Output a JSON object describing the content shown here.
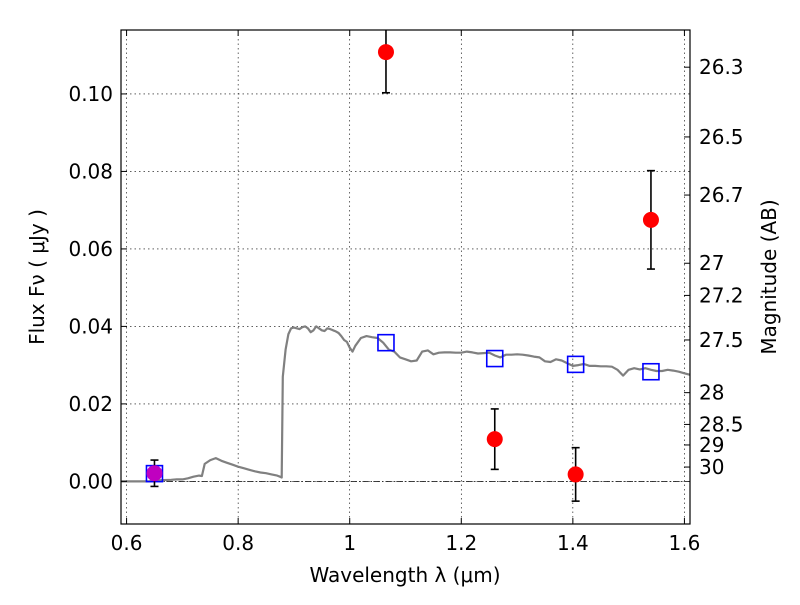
{
  "chart_data": {
    "type": "scatter",
    "title": "",
    "xlabel": "Wavelength  λ (μm)",
    "ylabel": "Flux  Fν  ( μJy )",
    "y2label": "Magnitude (AB)",
    "xlim": [
      0.59,
      1.61
    ],
    "ylim": [
      -0.011,
      0.1165
    ],
    "x_ticks": [
      0.6,
      0.8,
      1.0,
      1.2,
      1.4,
      1.6
    ],
    "x_tick_labels": [
      "0.6",
      "0.8",
      "1",
      "1.2",
      "1.4",
      "1.6"
    ],
    "y_ticks": [
      0.0,
      0.02,
      0.04,
      0.06,
      0.08,
      0.1
    ],
    "y_tick_labels": [
      "0.00",
      "0.02",
      "0.04",
      "0.06",
      "0.08",
      "0.10"
    ],
    "y2_ticks": [
      {
        "label": "26.3",
        "flux": 0.1069
      },
      {
        "label": "26.5",
        "flux": 0.0889
      },
      {
        "label": "26.7",
        "flux": 0.0739
      },
      {
        "label": "27",
        "flux": 0.0563
      },
      {
        "label": "27.2",
        "flux": 0.048
      },
      {
        "label": "27.5",
        "flux": 0.0365
      },
      {
        "label": "28",
        "flux": 0.0229
      },
      {
        "label": "28.5",
        "flux": 0.0147
      },
      {
        "label": "29",
        "flux": 0.0094
      },
      {
        "label": "30",
        "flux": 0.0037
      }
    ],
    "grid": true,
    "series": [
      {
        "kind": "line",
        "color": "#808080",
        "x": [
          0.59,
          0.6,
          0.62,
          0.64,
          0.65,
          0.66,
          0.68,
          0.69,
          0.7,
          0.71,
          0.72,
          0.73,
          0.735,
          0.74,
          0.75,
          0.76,
          0.77,
          0.78,
          0.79,
          0.8,
          0.81,
          0.82,
          0.83,
          0.84,
          0.85,
          0.86,
          0.87,
          0.875,
          0.878,
          0.88,
          0.885,
          0.89,
          0.895,
          0.9,
          0.905,
          0.91,
          0.915,
          0.92,
          0.925,
          0.93,
          0.935,
          0.94,
          0.945,
          0.95,
          0.955,
          0.96,
          0.965,
          0.97,
          0.975,
          0.98,
          0.985,
          0.99,
          0.995,
          1.0,
          1.005,
          1.01,
          1.02,
          1.03,
          1.04,
          1.05,
          1.06,
          1.07,
          1.08,
          1.09,
          1.1,
          1.11,
          1.12,
          1.13,
          1.14,
          1.15,
          1.16,
          1.17,
          1.18,
          1.19,
          1.2,
          1.21,
          1.22,
          1.23,
          1.24,
          1.25,
          1.26,
          1.27,
          1.28,
          1.29,
          1.3,
          1.31,
          1.32,
          1.33,
          1.34,
          1.35,
          1.36,
          1.37,
          1.38,
          1.39,
          1.4,
          1.41,
          1.42,
          1.43,
          1.44,
          1.45,
          1.46,
          1.47,
          1.48,
          1.49,
          1.5,
          1.51,
          1.52,
          1.53,
          1.54,
          1.55,
          1.56,
          1.57,
          1.58,
          1.59,
          1.6,
          1.61
        ],
        "y": [
          0.0,
          0.0,
          0.0,
          0.0,
          0.0002,
          0.0003,
          0.0004,
          0.0005,
          0.0005,
          0.0008,
          0.0012,
          0.0015,
          0.0014,
          0.0045,
          0.0055,
          0.006,
          0.0053,
          0.0048,
          0.0043,
          0.0038,
          0.0034,
          0.003,
          0.0026,
          0.0023,
          0.0021,
          0.0018,
          0.0015,
          0.0012,
          0.001,
          0.027,
          0.034,
          0.038,
          0.0395,
          0.0397,
          0.0395,
          0.0393,
          0.0398,
          0.04,
          0.0395,
          0.0385,
          0.039,
          0.04,
          0.0395,
          0.039,
          0.0388,
          0.0395,
          0.0393,
          0.039,
          0.0387,
          0.0383,
          0.0375,
          0.0365,
          0.036,
          0.0345,
          0.0335,
          0.035,
          0.037,
          0.0375,
          0.0372,
          0.037,
          0.0358,
          0.034,
          0.0335,
          0.032,
          0.0315,
          0.031,
          0.0312,
          0.0335,
          0.0338,
          0.0328,
          0.0332,
          0.0333,
          0.0333,
          0.0332,
          0.0332,
          0.0335,
          0.0333,
          0.033,
          0.0331,
          0.0332,
          0.0325,
          0.032,
          0.0327,
          0.0327,
          0.0328,
          0.0327,
          0.0325,
          0.0322,
          0.032,
          0.031,
          0.0308,
          0.0315,
          0.0312,
          0.0305,
          0.0298,
          0.03,
          0.0303,
          0.0298,
          0.0298,
          0.0297,
          0.0297,
          0.0296,
          0.0288,
          0.0273,
          0.0288,
          0.0292,
          0.0289,
          0.0292,
          0.0288,
          0.0285,
          0.0285,
          0.0288,
          0.0286,
          0.0283,
          0.0279,
          0.0275
        ]
      },
      {
        "kind": "squares",
        "color": "#0000ff",
        "x": [
          0.65,
          1.065,
          1.26,
          1.405,
          1.54
        ],
        "y": [
          0.002,
          0.0358,
          0.0317,
          0.0302,
          0.0283
        ]
      },
      {
        "kind": "points",
        "color": "#ff0000",
        "x": [
          1.065,
          1.26,
          1.405,
          1.54
        ],
        "y": [
          0.1108,
          0.0109,
          0.0018,
          0.0675
        ],
        "err": [
          0.0105,
          0.0078,
          0.0069,
          0.0127
        ]
      },
      {
        "kind": "points",
        "color": "#c000c0",
        "x": [
          0.65
        ],
        "y": [
          0.0021
        ],
        "err": [
          0.0034
        ]
      }
    ]
  }
}
